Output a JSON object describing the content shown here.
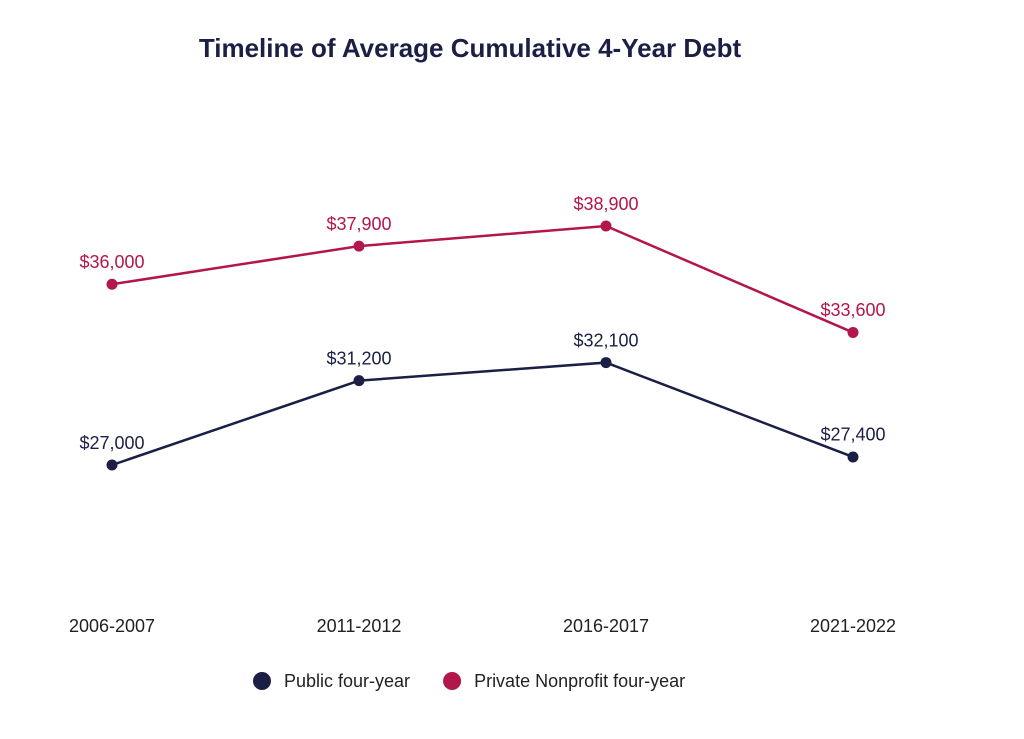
{
  "chart_data": {
    "type": "line",
    "title": "Timeline of Average Cumulative 4-Year Debt",
    "categories": [
      "2006-2007",
      "2011-2012",
      "2016-2017",
      "2021-2022"
    ],
    "series": [
      {
        "name": "Public four-year",
        "color": "#1c1f45",
        "values": [
          27000,
          31200,
          32100,
          27400
        ],
        "value_labels": [
          "$27,000",
          "$31,200",
          "$32,100",
          "$27,400"
        ]
      },
      {
        "name": "Private Nonprofit four-year",
        "color": "#b3164a",
        "values": [
          36000,
          37900,
          38900,
          33600
        ],
        "value_labels": [
          "$36,000",
          "$37,900",
          "$38,900",
          "$33,600"
        ]
      }
    ],
    "legend": "bottom",
    "grid": false
  }
}
